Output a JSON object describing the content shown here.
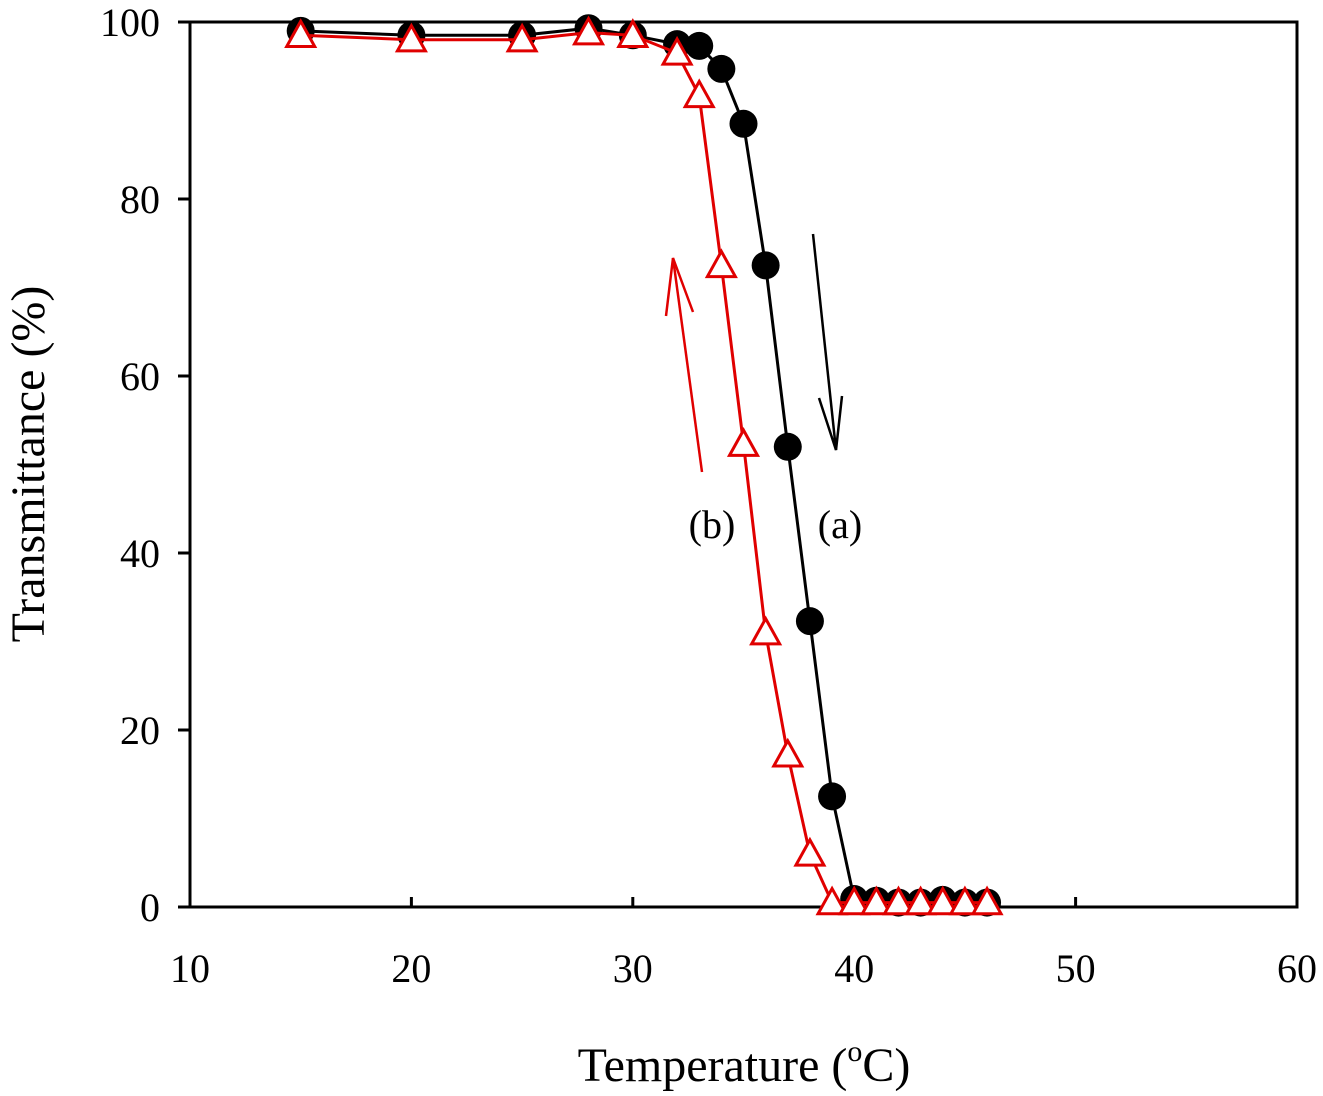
{
  "chart_data": {
    "type": "line",
    "title": "",
    "xlabel": "Temperature (",
    "xlabel_sup": "o",
    "xlabel_unit": "C)",
    "ylabel": "Transmittance (%)",
    "xlim": [
      10,
      60
    ],
    "ylim": [
      0,
      100
    ],
    "xticks": [
      "10",
      "20",
      "30",
      "40",
      "50",
      "60"
    ],
    "yticks": [
      "0",
      "20",
      "40",
      "60",
      "80",
      "100"
    ],
    "grid": false,
    "legend": "none",
    "series": [
      {
        "label": "(a)",
        "color": "#000000",
        "marker": "filled-circle",
        "direction": "down",
        "x": [
          15,
          20,
          25,
          28,
          30,
          32,
          33,
          34,
          35,
          36,
          37,
          38,
          39,
          40,
          41,
          42,
          43,
          44,
          45,
          46
        ],
        "y": [
          99,
          98.5,
          98.5,
          99.3,
          98.5,
          97.5,
          97.3,
          94.7,
          88.5,
          72.5,
          52,
          32.3,
          12.5,
          0.9,
          0.7,
          0.5,
          0.5,
          0.8,
          0.5,
          0.5
        ]
      },
      {
        "label": "(b)",
        "color": "#e00000",
        "marker": "open-triangle",
        "direction": "up",
        "x": [
          15,
          20,
          25,
          28,
          30,
          32,
          33,
          34,
          35,
          36,
          37,
          38,
          39,
          40,
          41,
          42,
          43,
          44,
          45,
          46
        ],
        "y": [
          98.5,
          98,
          98,
          98.8,
          98.5,
          96.5,
          91.7,
          72.5,
          52.3,
          31,
          17.2,
          6,
          0.5,
          0.5,
          0.5,
          0.5,
          0.5,
          0.5,
          0.5,
          0.5
        ]
      }
    ]
  }
}
